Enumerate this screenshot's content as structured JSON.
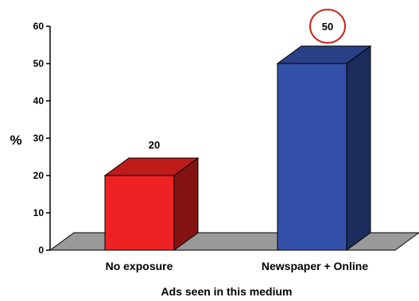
{
  "chart_data": {
    "type": "bar",
    "title": "",
    "xlabel": "Ads seen in this medium",
    "ylabel": "%",
    "ylim": [
      0,
      60
    ],
    "yticks": [
      0,
      10,
      20,
      30,
      40,
      50,
      60
    ],
    "categories": [
      "No exposure",
      "Newspaper + Online"
    ],
    "values": [
      20,
      50
    ],
    "data_labels": [
      "20",
      "50"
    ],
    "colors": [
      "#ee2222",
      "#3350a8"
    ],
    "highlighted": [
      "false",
      "true"
    ],
    "highlight_color": "#cc2222",
    "grid": "false",
    "legend": "none",
    "style": "3d"
  }
}
